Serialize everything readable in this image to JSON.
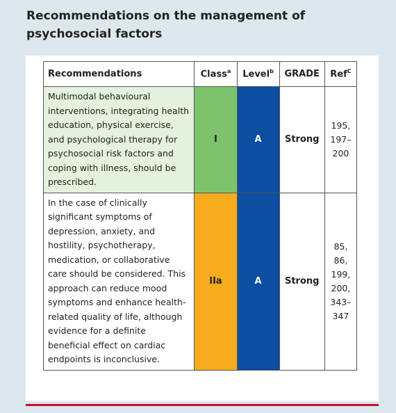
{
  "header": {
    "title": "Recommendations on the management of psychosocial factors"
  },
  "table": {
    "columns": [
      {
        "text": "Recommendations"
      },
      {
        "text": "Class",
        "sup": "a"
      },
      {
        "text": "Level",
        "sup": "b"
      },
      {
        "text": "GRADE"
      },
      {
        "text": "Ref",
        "sup": "C"
      }
    ],
    "rows": [
      {
        "recommendation": "Multimodal behavioural interventions, integrating health education, physical exercise, and psychological therapy for psychosocial risk factors and coping with illness, should be prescribed.",
        "class": "I",
        "level": "A",
        "grade": "Strong",
        "ref": [
          "195,",
          "197–",
          "200"
        ]
      },
      {
        "recommendation": "In the case of clinically significant symptoms of depression, anxiety, and hostility, psychotherapy, medication, or collaborative care should be considered. This approach can reduce mood symptoms and enhance health-related quality of life, although evidence for a definite beneficial effect on cardiac endpoints is inconclusive.",
        "class": "IIa",
        "level": "A",
        "grade": "Strong",
        "ref": [
          "85, 86,",
          "199,",
          "200,",
          "343–",
          "347"
        ]
      }
    ]
  }
}
